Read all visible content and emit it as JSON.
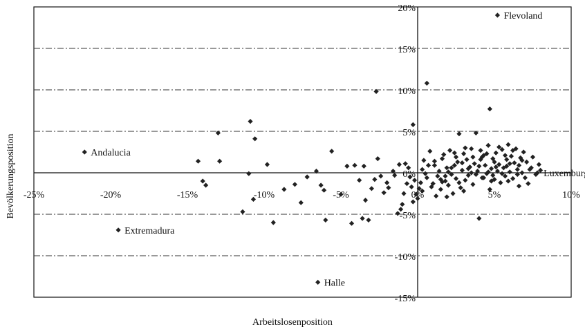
{
  "chart_data": {
    "type": "scatter",
    "title": "",
    "xlabel": "Arbeitslosenposition",
    "ylabel": "Bevölkerungsposition",
    "xlim": [
      -25,
      10
    ],
    "ylim": [
      -15,
      20
    ],
    "grid": true,
    "legend": "none",
    "marker_color": "#222222",
    "x_ticks": [
      "-25%",
      "-20%",
      "-15%",
      "-10%",
      "-5%",
      "0%",
      "5%",
      "10%"
    ],
    "y_ticks": [
      "20%",
      "15%",
      "10%",
      "5%",
      "0%",
      "-5%",
      "-10%",
      "-15%"
    ],
    "annotations": [
      {
        "text": "Flevoland",
        "x": 5.2,
        "y": 19.0
      },
      {
        "text": "Andalucia",
        "x": -21.7,
        "y": 2.5
      },
      {
        "text": "Extremadura",
        "x": -19.5,
        "y": -6.9
      },
      {
        "text": "Halle",
        "x": -6.5,
        "y": -13.2
      },
      {
        "text": "Luxemburg",
        "x": 7.8,
        "y": 0.0
      }
    ],
    "points": [
      [
        5.2,
        19.0
      ],
      [
        -21.7,
        2.5
      ],
      [
        -19.5,
        -6.9
      ],
      [
        -6.5,
        -13.2
      ],
      [
        7.8,
        0.0
      ],
      [
        0.6,
        10.8
      ],
      [
        -2.7,
        9.8
      ],
      [
        -0.3,
        5.8
      ],
      [
        4.7,
        7.7
      ],
      [
        -10.9,
        6.2
      ],
      [
        -13.0,
        4.8
      ],
      [
        -10.6,
        4.1
      ],
      [
        -14.3,
        1.4
      ],
      [
        -12.9,
        1.4
      ],
      [
        -9.8,
        1.0
      ],
      [
        -11.0,
        -0.1
      ],
      [
        -14.0,
        -1.0
      ],
      [
        -13.8,
        -1.5
      ],
      [
        -10.7,
        -3.2
      ],
      [
        -11.4,
        -4.7
      ],
      [
        -9.4,
        -6.0
      ],
      [
        -8.7,
        -2.0
      ],
      [
        -8.0,
        -1.4
      ],
      [
        -7.6,
        -3.6
      ],
      [
        -7.2,
        -0.5
      ],
      [
        -6.6,
        0.2
      ],
      [
        -6.3,
        -1.5
      ],
      [
        -6.1,
        -2.1
      ],
      [
        -6.0,
        -5.7
      ],
      [
        -5.6,
        2.6
      ],
      [
        -5.0,
        -2.6
      ],
      [
        -4.6,
        0.8
      ],
      [
        -4.3,
        -6.1
      ],
      [
        -4.1,
        0.9
      ],
      [
        -3.8,
        -0.9
      ],
      [
        -3.6,
        -5.5
      ],
      [
        -3.4,
        -3.3
      ],
      [
        -3.2,
        -5.7
      ],
      [
        -3.5,
        0.8
      ],
      [
        -3.0,
        -1.9
      ],
      [
        -2.8,
        -0.8
      ],
      [
        -2.6,
        1.7
      ],
      [
        -2.4,
        -0.4
      ],
      [
        -2.2,
        -2.4
      ],
      [
        -1.9,
        -1.8
      ],
      [
        -1.6,
        0.2
      ],
      [
        -1.5,
        -0.3
      ],
      [
        -1.3,
        -4.9
      ],
      [
        -1.1,
        -4.4
      ],
      [
        -1.0,
        -3.8
      ],
      [
        -0.9,
        -2.5
      ],
      [
        -0.8,
        1.1
      ],
      [
        -0.6,
        0.6
      ],
      [
        -0.5,
        -0.5
      ],
      [
        -0.4,
        -1.7
      ],
      [
        -0.2,
        -0.9
      ],
      [
        -0.1,
        -2.6
      ],
      [
        0.0,
        -3.1
      ],
      [
        0.1,
        -1.9
      ],
      [
        0.2,
        -1.2
      ],
      [
        0.3,
        0.4
      ],
      [
        0.4,
        1.5
      ],
      [
        0.6,
        -0.6
      ],
      [
        0.8,
        2.6
      ],
      [
        1.0,
        -1.3
      ],
      [
        1.1,
        0.9
      ],
      [
        1.3,
        -0.4
      ],
      [
        1.4,
        0.2
      ],
      [
        1.5,
        -2.0
      ],
      [
        1.6,
        1.7
      ],
      [
        1.7,
        2.2
      ],
      [
        1.8,
        -1.0
      ],
      [
        1.9,
        0.6
      ],
      [
        2.0,
        -1.5
      ],
      [
        2.1,
        2.7
      ],
      [
        2.2,
        -0.2
      ],
      [
        2.3,
        -2.5
      ],
      [
        2.4,
        0.9
      ],
      [
        2.5,
        -0.7
      ],
      [
        2.6,
        1.3
      ],
      [
        2.7,
        4.7
      ],
      [
        2.8,
        -1.8
      ],
      [
        2.9,
        0.3
      ],
      [
        3.0,
        2.3
      ],
      [
        3.1,
        -0.9
      ],
      [
        3.2,
        1.6
      ],
      [
        3.3,
        -0.3
      ],
      [
        3.4,
        0.7
      ],
      [
        3.5,
        2.9
      ],
      [
        3.6,
        -1.4
      ],
      [
        3.7,
        1.1
      ],
      [
        3.8,
        4.8
      ],
      [
        3.9,
        0.2
      ],
      [
        4.0,
        -5.5
      ],
      [
        4.1,
        1.6
      ],
      [
        4.2,
        -0.6
      ],
      [
        4.3,
        2.1
      ],
      [
        4.4,
        0.9
      ],
      [
        4.5,
        -0.1
      ],
      [
        4.6,
        3.3
      ],
      [
        4.7,
        -2.0
      ],
      [
        4.8,
        0.5
      ],
      [
        4.9,
        1.7
      ],
      [
        5.0,
        -0.8
      ],
      [
        5.1,
        2.4
      ],
      [
        5.2,
        0.2
      ],
      [
        5.3,
        1.0
      ],
      [
        5.4,
        -1.2
      ],
      [
        5.5,
        2.8
      ],
      [
        5.6,
        0.6
      ],
      [
        5.7,
        -0.4
      ],
      [
        5.8,
        1.6
      ],
      [
        5.9,
        3.4
      ],
      [
        6.0,
        0.1
      ],
      [
        6.1,
        2.0
      ],
      [
        6.2,
        -0.7
      ],
      [
        6.3,
        1.2
      ],
      [
        6.4,
        2.9
      ],
      [
        6.5,
        0.4
      ],
      [
        6.6,
        -1.6
      ],
      [
        6.7,
        1.8
      ],
      [
        6.8,
        0.0
      ],
      [
        6.9,
        2.5
      ],
      [
        7.0,
        -0.6
      ],
      [
        7.1,
        1.3
      ],
      [
        7.3,
        0.4
      ],
      [
        7.5,
        1.9
      ],
      [
        7.7,
        -0.2
      ],
      [
        7.9,
        1.0
      ],
      [
        8.0,
        0.3
      ],
      [
        1.2,
        -2.8
      ],
      [
        0.9,
        -1.7
      ],
      [
        1.5,
        -0.8
      ],
      [
        2.0,
        0.1
      ],
      [
        2.5,
        1.9
      ],
      [
        3.0,
        -2.2
      ],
      [
        3.5,
        0.0
      ],
      [
        4.0,
        0.8
      ],
      [
        4.5,
        2.3
      ],
      [
        5.0,
        1.3
      ],
      [
        5.5,
        -0.1
      ],
      [
        6.0,
        1.1
      ],
      [
        6.5,
        -0.2
      ],
      [
        4.2,
        1.9
      ],
      [
        3.8,
        -0.2
      ],
      [
        4.8,
        -1.0
      ],
      [
        5.8,
        0.8
      ],
      [
        2.9,
        1.2
      ],
      [
        1.8,
        -0.4
      ],
      [
        0.5,
        -0.1
      ],
      [
        6.2,
        2.7
      ],
      [
        5.3,
        3.1
      ],
      [
        4.1,
        2.7
      ],
      [
        3.3,
        0.5
      ],
      [
        2.2,
        0.6
      ],
      [
        1.1,
        1.4
      ],
      [
        7.2,
        -1.3
      ],
      [
        0.3,
        -2.2
      ],
      [
        1.6,
        -1.1
      ],
      [
        2.7,
        -1.2
      ],
      [
        5.7,
        2.1
      ],
      [
        4.6,
        0.1
      ],
      [
        3.6,
        1.9
      ],
      [
        2.4,
        2.4
      ],
      [
        6.8,
        1.5
      ],
      [
        5.1,
        0.7
      ],
      [
        4.3,
        -0.6
      ],
      [
        0.7,
        0.9
      ],
      [
        -0.7,
        -1.3
      ],
      [
        -1.2,
        1.0
      ],
      [
        -2.0,
        -1.2
      ],
      [
        -0.3,
        -3.5
      ],
      [
        1.9,
        -2.9
      ],
      [
        3.1,
        3.0
      ],
      [
        4.9,
        -0.3
      ],
      [
        5.9,
        -1.0
      ],
      [
        6.6,
        0.9
      ],
      [
        7.4,
        0.6
      ]
    ]
  }
}
